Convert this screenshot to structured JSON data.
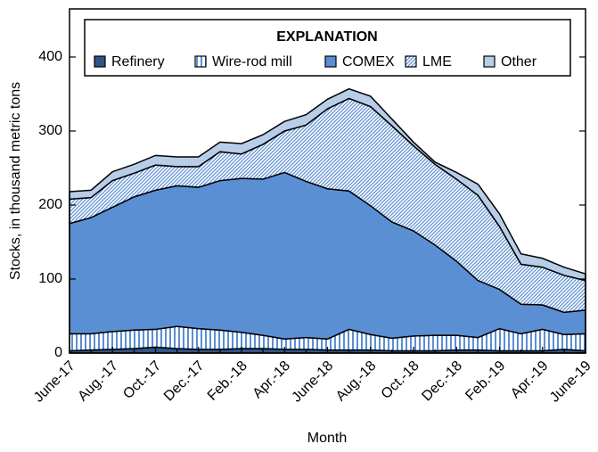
{
  "chart_data": {
    "type": "stacked-area",
    "legend_title": "EXPLANATION",
    "x_label": "Month",
    "y_label": "Stocks, in thousand metric tons",
    "categories": [
      "June-17",
      null,
      "Aug.-17",
      null,
      "Oct.-17",
      null,
      "Dec.-17",
      null,
      "Feb.-18",
      null,
      "Apr.-18",
      null,
      "June-18",
      null,
      "Aug.-18",
      null,
      "Oct.-18",
      null,
      "Dec.-18",
      null,
      "Feb.-19",
      null,
      "Apr.-19",
      null,
      "June-19"
    ],
    "series": [
      {
        "name": "Refinery",
        "color": "#2f5588",
        "values": [
          3,
          4,
          5,
          6,
          8,
          6,
          5,
          5,
          6,
          6,
          5,
          5,
          4,
          4,
          4,
          3,
          3,
          3,
          4,
          4,
          3,
          3,
          3,
          5,
          3
        ]
      },
      {
        "name": "Wire-rod mill",
        "color": "#5b8fd4",
        "hatch": "vertical",
        "values": [
          23,
          22,
          24,
          25,
          24,
          30,
          28,
          26,
          22,
          18,
          14,
          16,
          15,
          28,
          21,
          17,
          20,
          21,
          20,
          17,
          30,
          23,
          29,
          20,
          23
        ]
      },
      {
        "name": "COMEX",
        "color": "#5b8fd4",
        "values": [
          149,
          157,
          168,
          180,
          188,
          190,
          191,
          202,
          208,
          211,
          225,
          211,
          203,
          187,
          174,
          157,
          142,
          122,
          100,
          77,
          53,
          40,
          33,
          30,
          32
        ]
      },
      {
        "name": "LME",
        "color": "#5b8fd4",
        "hatch": "diagonal",
        "values": [
          33,
          27,
          36,
          32,
          34,
          26,
          28,
          39,
          33,
          47,
          56,
          76,
          108,
          125,
          134,
          130,
          115,
          109,
          111,
          115,
          85,
          54,
          51,
          50,
          40
        ]
      },
      {
        "name": "Other",
        "color": "#b7cde8",
        "values": [
          10,
          10,
          12,
          12,
          13,
          13,
          13,
          13,
          14,
          13,
          13,
          14,
          13,
          13,
          14,
          9,
          5,
          3,
          9,
          15,
          17,
          14,
          12,
          11,
          9
        ]
      }
    ],
    "ylim": [
      0,
      465
    ],
    "yticks": [
      0,
      100,
      200,
      300,
      400
    ]
  }
}
